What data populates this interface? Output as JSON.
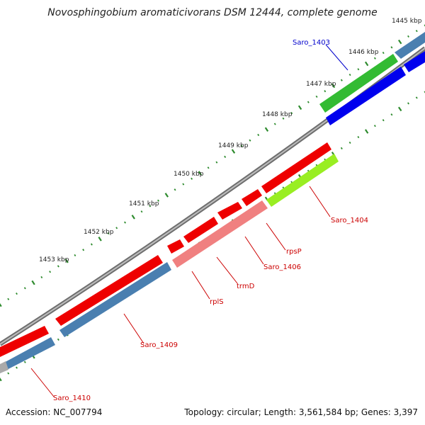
{
  "title": "Novosphingobium aromaticivorans DSM 12444, complete genome",
  "footer": {
    "accession": "Accession: NC_007794",
    "stats": "Topology: circular; Length: 3,561,584 bp; Genes: 3,397"
  },
  "scale_labels": [
    "1445 kbp",
    "1446 kbp",
    "1447 kbp",
    "1448 kbp",
    "1449 kbp",
    "1450 kbp",
    "1451 kbp",
    "1452 kbp",
    "1453 kbp"
  ],
  "gene_labels": [
    {
      "text": "Saro_1403",
      "color": "#0000cc"
    },
    {
      "text": "Saro_1404",
      "color": "#cc0000"
    },
    {
      "text": "rpsP",
      "color": "#cc0000"
    },
    {
      "text": "Saro_1406",
      "color": "#cc0000"
    },
    {
      "text": "trmD",
      "color": "#cc0000"
    },
    {
      "text": "rplS",
      "color": "#cc0000"
    },
    {
      "text": "Saro_1409",
      "color": "#cc0000"
    },
    {
      "text": "Saro_1410",
      "color": "#cc0000"
    }
  ],
  "colors": {
    "backbone": "#7a7a7a",
    "tick_dots": "#2e8b2e",
    "cds_forward": "#ee0000",
    "cds_light": "#f08080",
    "steelblue": "#4a7fb0",
    "green": "#33bb33",
    "blue": "#0000ee",
    "yellowgreen": "#99ee22",
    "grey_feature": "#aaaaaa"
  }
}
